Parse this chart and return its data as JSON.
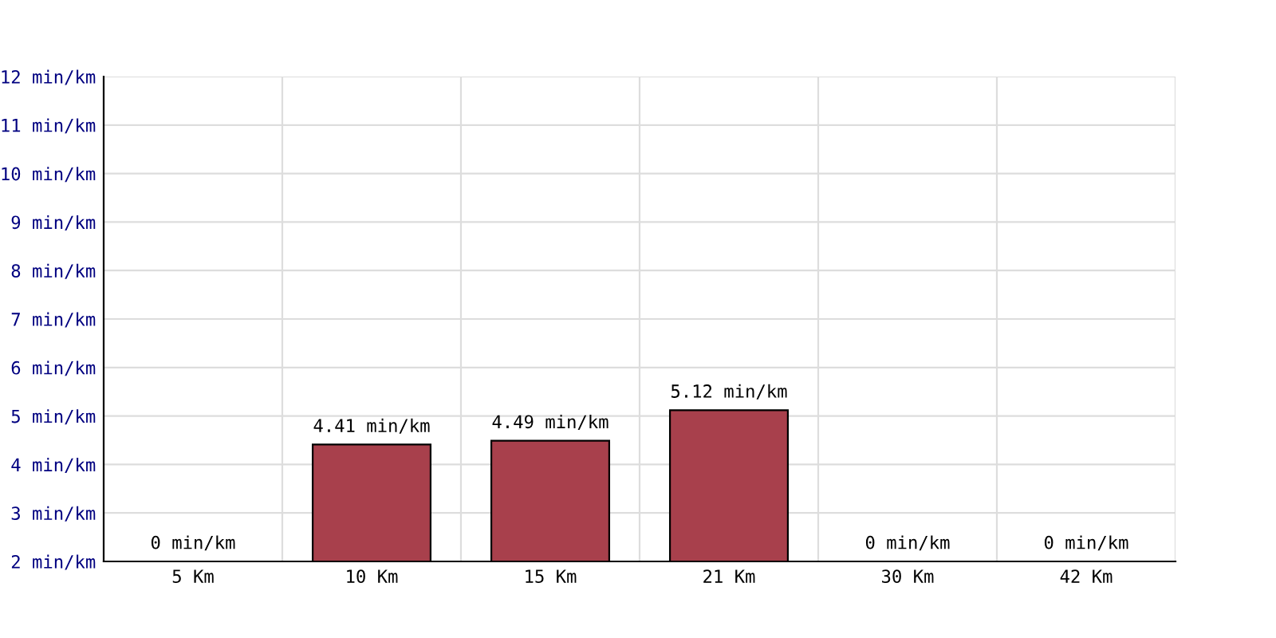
{
  "chart_data": {
    "type": "bar",
    "categories": [
      "5 Km",
      "10 Km",
      "15 Km",
      "21 Km",
      "30 Km",
      "42 Km"
    ],
    "values": [
      null,
      4.41,
      4.49,
      5.12,
      null,
      null
    ],
    "value_labels": [
      "0 min/km",
      "4.41 min/km",
      "4.49 min/km",
      "5.12 min/km",
      "0 min/km",
      "0 min/km"
    ],
    "color": "#a8404c",
    "ylim": [
      2,
      12
    ],
    "yticks": [
      {
        "value": 2,
        "label": "2 min/km"
      },
      {
        "value": 3,
        "label": "3 min/km"
      },
      {
        "value": 4,
        "label": "4 min/km"
      },
      {
        "value": 5,
        "label": "5 min/km"
      },
      {
        "value": 6,
        "label": "6 min/km"
      },
      {
        "value": 7,
        "label": "7 min/km"
      },
      {
        "value": 8,
        "label": "8 min/km"
      },
      {
        "value": 9,
        "label": "9 min/km"
      },
      {
        "value": 10,
        "label": "10 min/km"
      },
      {
        "value": 11,
        "label": "11 min/km"
      },
      {
        "value": 12,
        "label": "12 min/km"
      }
    ],
    "grid": true
  }
}
